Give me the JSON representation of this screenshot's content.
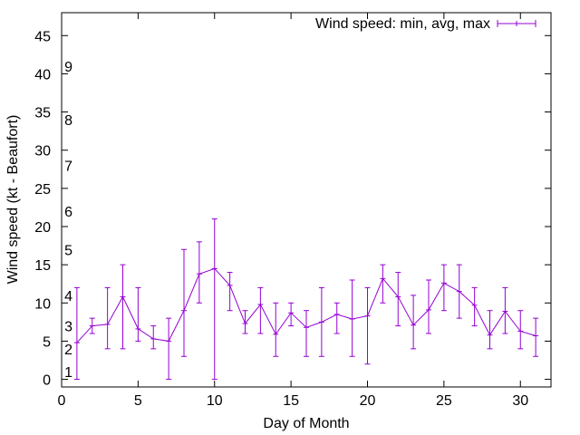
{
  "chart_data": {
    "type": "line",
    "title": "",
    "xlabel": "Day of Month",
    "ylabel": "Wind speed (kt - Beaufort)",
    "xlim": [
      0,
      32
    ],
    "ylim": [
      -1,
      48
    ],
    "xticks": [
      0,
      5,
      10,
      15,
      20,
      25,
      30
    ],
    "yticks": [
      0,
      5,
      10,
      15,
      20,
      25,
      30,
      35,
      40,
      45
    ],
    "beaufort_labels": [
      {
        "text": "1",
        "y": 1
      },
      {
        "text": "2",
        "y": 4
      },
      {
        "text": "3",
        "y": 7
      },
      {
        "text": "4",
        "y": 11
      },
      {
        "text": "5",
        "y": 17
      },
      {
        "text": "6",
        "y": 22
      },
      {
        "text": "7",
        "y": 28
      },
      {
        "text": "8",
        "y": 34
      },
      {
        "text": "9",
        "y": 41
      }
    ],
    "legend_position": "top-right",
    "series": [
      {
        "name": "Wind speed: min, avg, max",
        "color": "#9400d3",
        "points": [
          {
            "x": 1,
            "min": 0,
            "avg": 4.8,
            "max": 12
          },
          {
            "x": 2,
            "min": 6,
            "avg": 7,
            "max": 8
          },
          {
            "x": 3,
            "min": 4,
            "avg": 7.2,
            "max": 12
          },
          {
            "x": 4,
            "min": 4,
            "avg": 10.8,
            "max": 15
          },
          {
            "x": 5,
            "min": 5,
            "avg": 6.6,
            "max": 12
          },
          {
            "x": 6,
            "min": 4,
            "avg": 5.3,
            "max": 7
          },
          {
            "x": 7,
            "min": 0,
            "avg": 5,
            "max": 8
          },
          {
            "x": 8,
            "min": 3,
            "avg": 9,
            "max": 17
          },
          {
            "x": 9,
            "min": 10,
            "avg": 13.8,
            "max": 18
          },
          {
            "x": 10,
            "min": 0,
            "avg": 14.5,
            "max": 21
          },
          {
            "x": 11,
            "min": 9,
            "avg": 12.3,
            "max": 14
          },
          {
            "x": 12,
            "min": 6,
            "avg": 7.3,
            "max": 9
          },
          {
            "x": 13,
            "min": 6,
            "avg": 9.8,
            "max": 12
          },
          {
            "x": 14,
            "min": 3,
            "avg": 5.9,
            "max": 10
          },
          {
            "x": 15,
            "min": 7,
            "avg": 8.7,
            "max": 10
          },
          {
            "x": 16,
            "min": 3,
            "avg": 6.8,
            "max": 9
          },
          {
            "x": 17,
            "min": 3,
            "avg": 7.5,
            "max": 12
          },
          {
            "x": 18,
            "min": 6,
            "avg": 8.5,
            "max": 10
          },
          {
            "x": 19,
            "min": 3,
            "avg": 7.9,
            "max": 13
          },
          {
            "x": 20,
            "min": 2,
            "avg": 8.3,
            "max": 12
          },
          {
            "x": 21,
            "min": 10,
            "avg": 13.2,
            "max": 15
          },
          {
            "x": 22,
            "min": 7,
            "avg": 10.8,
            "max": 14
          },
          {
            "x": 23,
            "min": 4,
            "avg": 7.1,
            "max": 11
          },
          {
            "x": 24,
            "min": 6,
            "avg": 9.1,
            "max": 13
          },
          {
            "x": 25,
            "min": 9,
            "avg": 12.6,
            "max": 15
          },
          {
            "x": 26,
            "min": 8,
            "avg": 11.5,
            "max": 15
          },
          {
            "x": 27,
            "min": 7,
            "avg": 9.7,
            "max": 12
          },
          {
            "x": 28,
            "min": 4,
            "avg": 5.8,
            "max": 9
          },
          {
            "x": 29,
            "min": 6,
            "avg": 8.9,
            "max": 12
          },
          {
            "x": 30,
            "min": 4,
            "avg": 6.3,
            "max": 9
          },
          {
            "x": 31,
            "min": 3,
            "avg": 5.7,
            "max": 8
          }
        ]
      }
    ]
  }
}
